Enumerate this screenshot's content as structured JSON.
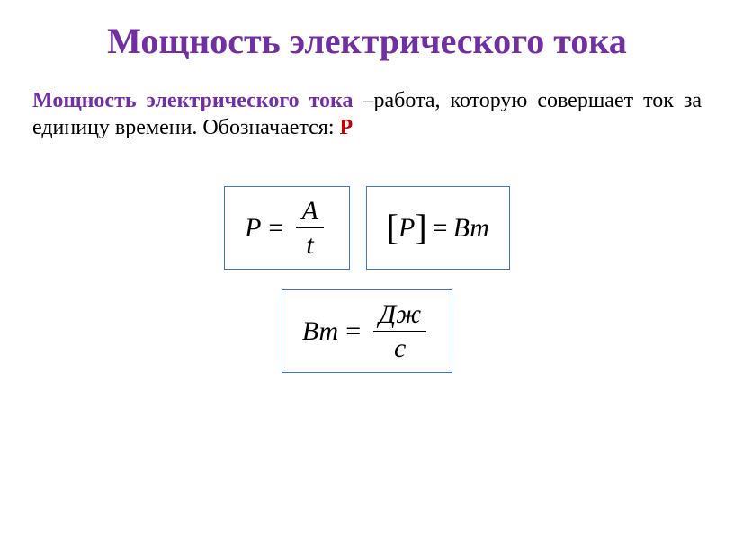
{
  "title": "Мощность электрического тока",
  "definition": {
    "term": "Мощность электрического тока",
    "dash": " –",
    "text1": "работа, которую совершает ток за единицу времени. Обозначается: ",
    "symbol": "Р"
  },
  "formula1": {
    "left": "P",
    "eq": "=",
    "num": "A",
    "den": "t"
  },
  "formula2": {
    "lbracket": "[",
    "inner": "P",
    "rbracket": "]",
    "eq": "=",
    "right": "Вт"
  },
  "formula3": {
    "left": "Вт",
    "eq": "=",
    "num": "Дж",
    "den": "с"
  },
  "colors": {
    "title": "#7030a0",
    "term": "#7030a0",
    "symbol": "#c00000",
    "box_border": "#4472c4",
    "text": "#000000",
    "background": "#ffffff"
  }
}
